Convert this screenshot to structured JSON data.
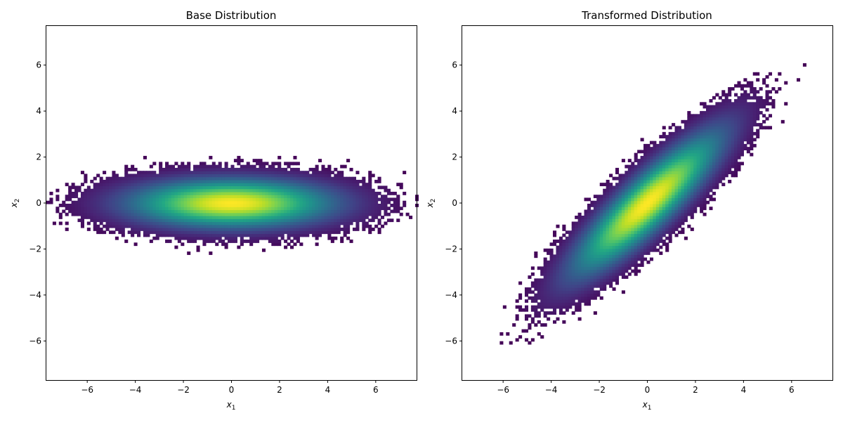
{
  "chart_data": [
    {
      "type": "heatmap",
      "title": "Base Distribution",
      "xlabel": "x",
      "xlabel_sub": "1",
      "ylabel": "x",
      "ylabel_sub": "2",
      "xlim": [
        -7.7,
        7.7
      ],
      "ylim": [
        -7.7,
        7.7
      ],
      "xticks": [
        -6,
        -4,
        -2,
        0,
        2,
        4,
        6
      ],
      "yticks": [
        -6,
        -4,
        -2,
        0,
        2,
        4,
        6
      ],
      "xtick_labels": [
        "−6",
        "−4",
        "−2",
        "0",
        "2",
        "4",
        "6"
      ],
      "ytick_labels": [
        "−6",
        "−4",
        "−2",
        "0",
        "2",
        "4",
        "6"
      ],
      "grid": false,
      "colormap": "viridis",
      "distribution": {
        "mean": [
          0,
          0
        ],
        "std": [
          2.0,
          0.5
        ],
        "correlation": 0.0,
        "n_samples": 100000,
        "bin_size": 0.13
      }
    },
    {
      "type": "heatmap",
      "title": "Transformed Distribution",
      "xlabel": "x",
      "xlabel_sub": "1",
      "ylabel": "x",
      "ylabel_sub": "2",
      "xlim": [
        -7.7,
        7.7
      ],
      "ylim": [
        -7.7,
        7.7
      ],
      "xticks": [
        -6,
        -4,
        -2,
        0,
        2,
        4,
        6
      ],
      "yticks": [
        -6,
        -4,
        -2,
        0,
        2,
        4,
        6
      ],
      "xtick_labels": [
        "−6",
        "−4",
        "−2",
        "0",
        "2",
        "4",
        "6"
      ],
      "ytick_labels": [
        "−6",
        "−4",
        "−2",
        "0",
        "2",
        "4",
        "6"
      ],
      "grid": false,
      "colormap": "viridis",
      "distribution": {
        "mean": [
          0,
          0
        ],
        "std": [
          1.45,
          1.45
        ],
        "correlation": 0.88,
        "n_samples": 100000,
        "bin_size": 0.13
      }
    }
  ]
}
